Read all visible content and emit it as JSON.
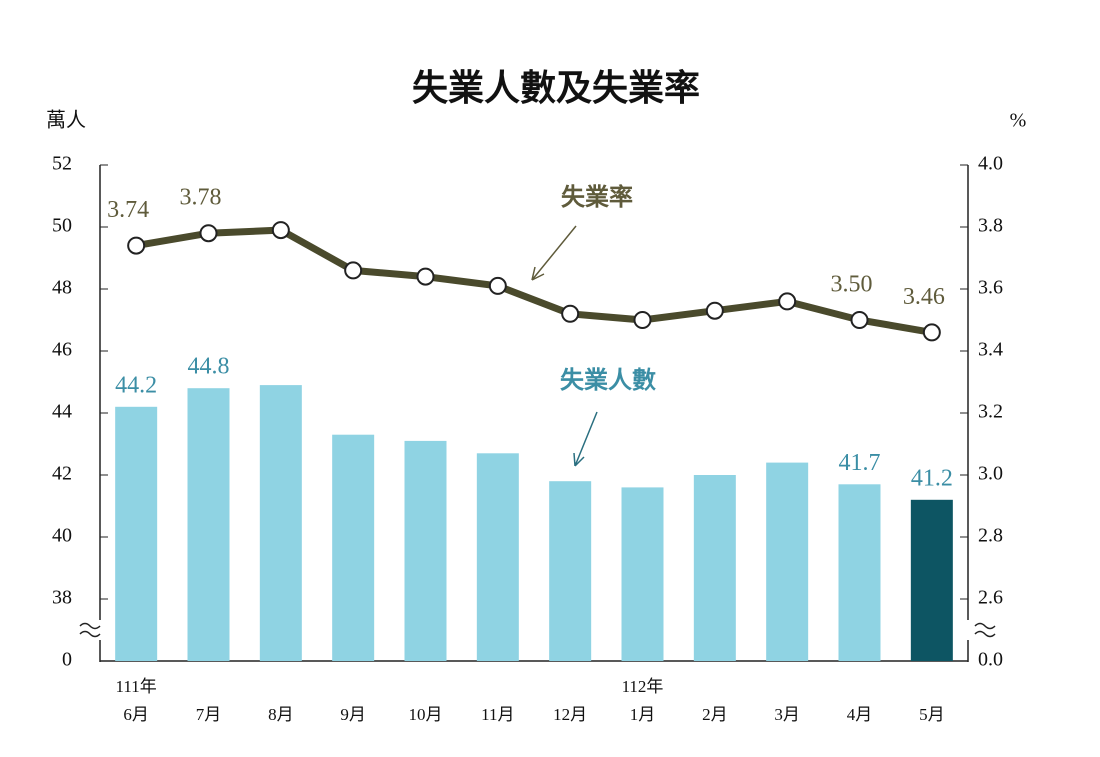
{
  "chart_data": {
    "type": "bar_line",
    "title": "失業人數及失業率",
    "y_unit": "萬人",
    "y2_unit": "%",
    "categories": [
      "6月",
      "7月",
      "8月",
      "9月",
      "10月",
      "11月",
      "12月",
      "1月",
      "2月",
      "3月",
      "4月",
      "5月"
    ],
    "year_labels": [
      "111年",
      null,
      null,
      null,
      null,
      null,
      null,
      "112年",
      null,
      null,
      null,
      null
    ],
    "ylim": [
      0,
      52
    ],
    "ybreak": 36,
    "yticks": [
      0,
      38,
      40,
      42,
      44,
      46,
      48,
      50,
      52
    ],
    "y2lim": [
      0,
      4.0
    ],
    "y2break": 2.4,
    "y2ticks": [
      {
        "value": 0,
        "label": "0.0"
      },
      2.6,
      2.8,
      {
        "value": 3.0,
        "label": "3.0"
      },
      3.2,
      3.4,
      3.6,
      3.8,
      {
        "value": 4.0,
        "label": "4.0"
      }
    ],
    "series": [
      {
        "name": "失業人數",
        "type": "bar",
        "color": "#8fd3e3",
        "highlight_color": "#0d5563",
        "label_color": "#3b8ea5",
        "values": [
          44.2,
          44.8,
          44.9,
          43.3,
          43.1,
          42.7,
          41.8,
          41.6,
          42.0,
          42.4,
          41.7,
          41.2
        ],
        "value_labels": [
          "44.2",
          "44.8",
          null,
          null,
          null,
          null,
          null,
          null,
          null,
          null,
          "41.7",
          "41.2"
        ]
      },
      {
        "name": "失業率",
        "type": "line",
        "axis": "y2",
        "color": "#4a4a2c",
        "label_color": "#5f5b3b",
        "values": [
          3.74,
          3.78,
          3.79,
          3.66,
          3.64,
          3.61,
          3.52,
          3.5,
          3.53,
          3.56,
          3.5,
          3.46
        ],
        "value_labels": [
          "3.74",
          "3.78",
          null,
          null,
          null,
          null,
          null,
          null,
          null,
          null,
          "3.50",
          "3.46"
        ]
      }
    ]
  }
}
